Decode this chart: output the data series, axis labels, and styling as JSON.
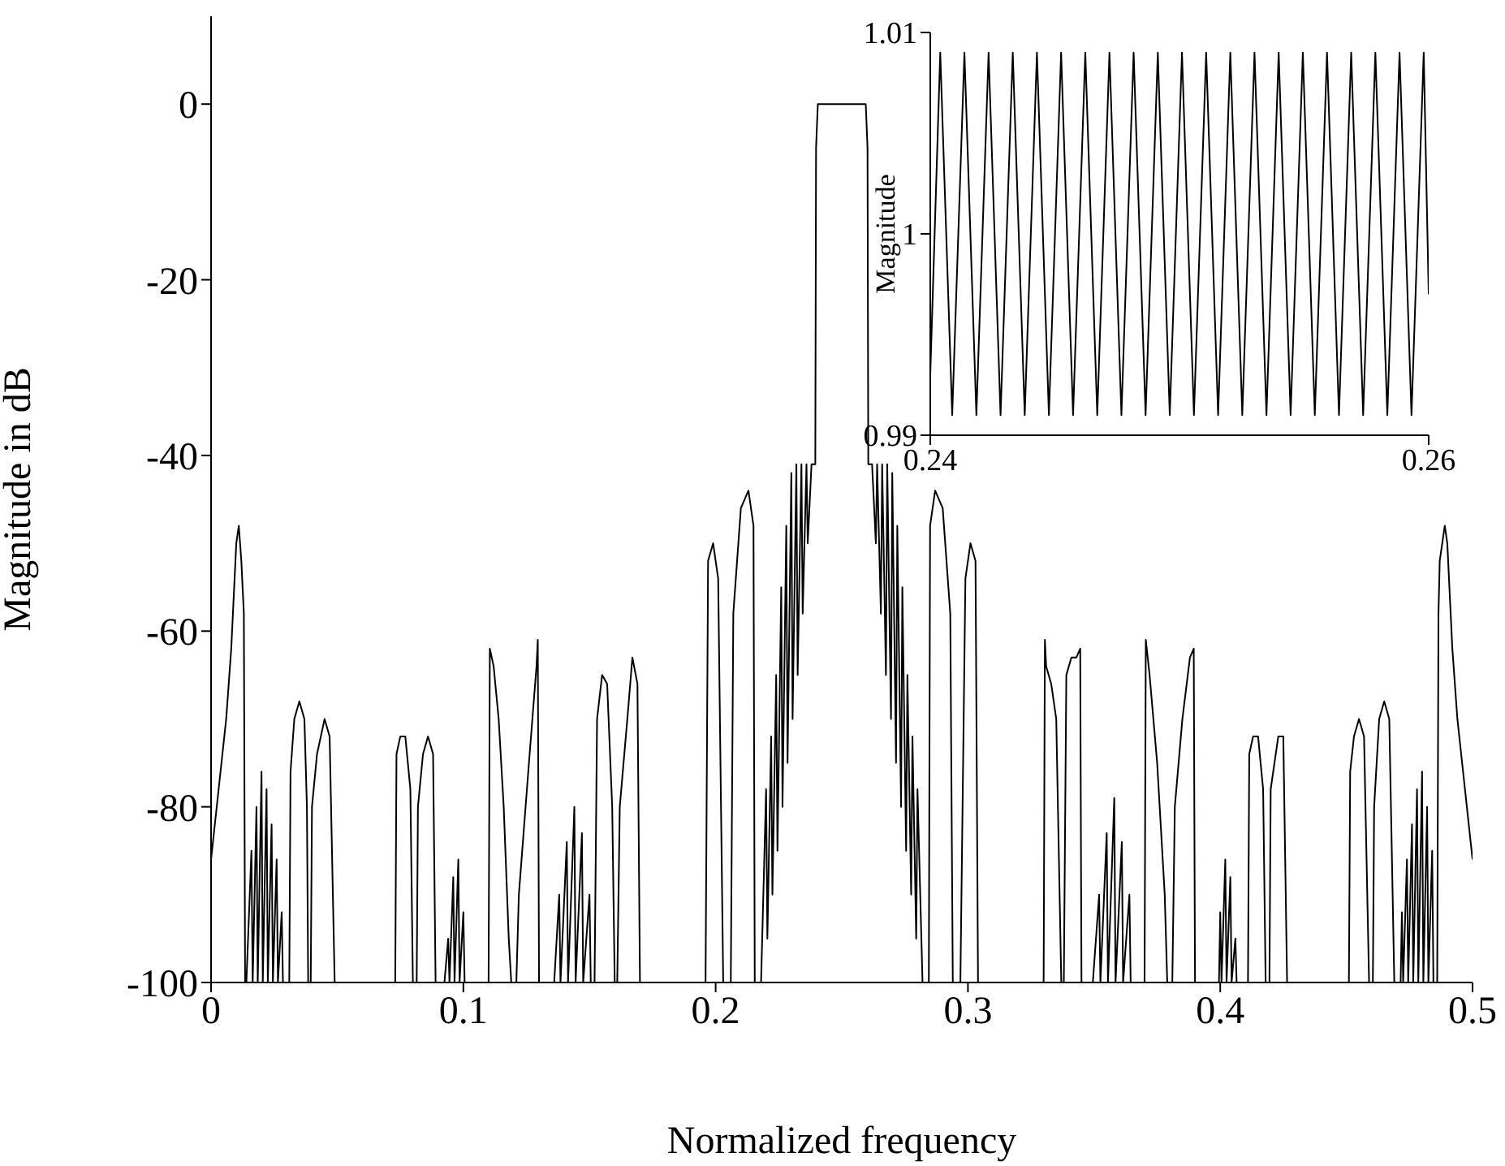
{
  "chart_data": [
    {
      "type": "line",
      "xlabel": "Normalized frequency",
      "ylabel": "Magnitude in dB",
      "xlim": [
        0,
        0.5
      ],
      "ylim": [
        -100,
        10
      ],
      "xticks": [
        0,
        0.1,
        0.2,
        0.3,
        0.4,
        0.5
      ],
      "yticks": [
        -100,
        -80,
        -60,
        -40,
        -20,
        0
      ],
      "series": [
        {
          "color": "#000000",
          "x": [
            0,
            0.003,
            0.006,
            0.008,
            0.01,
            0.011,
            0.012,
            0.013,
            0.0135,
            0.014,
            0.016,
            0.0165,
            0.018,
            0.0185,
            0.02,
            0.0205,
            0.022,
            0.0225,
            0.024,
            0.0245,
            0.026,
            0.0265,
            0.028,
            0.0285,
            0.031,
            0.0315,
            0.033,
            0.035,
            0.037,
            0.038,
            0.0385,
            0.0395,
            0.04,
            0.042,
            0.045,
            0.047,
            0.049,
            0.073,
            0.0735,
            0.075,
            0.077,
            0.079,
            0.08,
            0.0815,
            0.082,
            0.084,
            0.086,
            0.088,
            0.089,
            0.0925,
            0.094,
            0.0945,
            0.096,
            0.0965,
            0.098,
            0.0985,
            0.1,
            0.1005,
            0.11,
            0.1105,
            0.112,
            0.114,
            0.116,
            0.118,
            0.119,
            0.121,
            0.122,
            0.126,
            0.129,
            0.1295,
            0.13,
            0.136,
            0.138,
            0.1385,
            0.141,
            0.1415,
            0.144,
            0.1445,
            0.147,
            0.1475,
            0.15,
            0.1505,
            0.152,
            0.153,
            0.155,
            0.157,
            0.159,
            0.16,
            0.161,
            0.162,
            0.165,
            0.167,
            0.169,
            0.17,
            0.196,
            0.197,
            0.199,
            0.201,
            0.203,
            0.206,
            0.207,
            0.21,
            0.213,
            0.215,
            0.2155,
            0.218,
            0.22,
            0.2205,
            0.222,
            0.2225,
            0.224,
            0.2245,
            0.226,
            0.2265,
            0.228,
            0.2285,
            0.23,
            0.2305,
            0.232,
            0.2325,
            0.234,
            0.2345,
            0.236,
            0.2365,
            0.238,
            0.2395,
            0.2398,
            0.2405,
            0.245,
            0.25,
            0.255,
            0.2595,
            0.2602,
            0.2605,
            0.262,
            0.2635,
            0.264,
            0.2655,
            0.266,
            0.2675,
            0.268,
            0.2695,
            0.27,
            0.2715,
            0.272,
            0.2735,
            0.274,
            0.2755,
            0.276,
            0.2775,
            0.278,
            0.2795,
            0.28,
            0.282,
            0.2845,
            0.285,
            0.287,
            0.29,
            0.293,
            0.294,
            0.297,
            0.299,
            0.301,
            0.303,
            0.304,
            0.33,
            0.3305,
            0.331,
            0.333,
            0.335,
            0.337,
            0.338,
            0.339,
            0.341,
            0.343,
            0.3445,
            0.345,
            0.3495,
            0.352,
            0.3525,
            0.355,
            0.3555,
            0.358,
            0.3585,
            0.361,
            0.3615,
            0.364,
            0.3645,
            0.37,
            0.3705,
            0.372,
            0.375,
            0.378,
            0.379,
            0.381,
            0.382,
            0.385,
            0.388,
            0.3895,
            0.39,
            0.3995,
            0.4,
            0.4005,
            0.402,
            0.4025,
            0.404,
            0.4045,
            0.406,
            0.4065,
            0.411,
            0.4115,
            0.413,
            0.415,
            0.417,
            0.418,
            0.4195,
            0.42,
            0.423,
            0.425,
            0.4265,
            0.451,
            0.4515,
            0.453,
            0.455,
            0.457,
            0.459,
            0.4605,
            0.461,
            0.463,
            0.465,
            0.467,
            0.469,
            0.4715,
            0.472,
            0.4725,
            0.474,
            0.4745,
            0.476,
            0.4765,
            0.478,
            0.4785,
            0.48,
            0.4805,
            0.482,
            0.4825,
            0.484,
            0.4845,
            0.486,
            0.4865,
            0.487,
            0.489,
            0.49,
            0.492,
            0.494,
            0.497,
            0.5
          ],
          "values": [
            -86,
            -78,
            -70,
            -62,
            -50,
            -48,
            -52,
            -58,
            -100,
            -100,
            -85,
            -100,
            -80,
            -100,
            -76,
            -100,
            -78,
            -100,
            -82,
            -100,
            -86,
            -100,
            -92,
            -100,
            -100,
            -76,
            -70,
            -68,
            -70,
            -80,
            -100,
            -100,
            -80,
            -74,
            -70,
            -72,
            -100,
            -100,
            -74,
            -72,
            -72,
            -78,
            -100,
            -100,
            -80,
            -74,
            -72,
            -74,
            -100,
            -100,
            -95,
            -100,
            -88,
            -100,
            -86,
            -100,
            -92,
            -100,
            -100,
            -62,
            -64,
            -70,
            -80,
            -95,
            -100,
            -100,
            -90,
            -75,
            -64,
            -61,
            -100,
            -100,
            -90,
            -100,
            -84,
            -100,
            -80,
            -100,
            -83,
            -100,
            -90,
            -100,
            -100,
            -70,
            -65,
            -66,
            -80,
            -100,
            -100,
            -80,
            -70,
            -63,
            -66,
            -100,
            -100,
            -52,
            -50,
            -54,
            -100,
            -100,
            -58,
            -46,
            -44,
            -48,
            -100,
            -100,
            -78,
            -95,
            -72,
            -90,
            -65,
            -85,
            -55,
            -80,
            -48,
            -75,
            -42,
            -70,
            -41,
            -65,
            -41,
            -58,
            -41,
            -50,
            -41,
            -41,
            -5,
            0,
            0,
            0,
            0,
            0,
            -5,
            -41,
            -41,
            -50,
            -41,
            -58,
            -41,
            -65,
            -41,
            -70,
            -42,
            -75,
            -48,
            -80,
            -55,
            -85,
            -65,
            -90,
            -72,
            -95,
            -78,
            -100,
            -100,
            -48,
            -44,
            -46,
            -58,
            -100,
            -100,
            -54,
            -50,
            -52,
            -100,
            -100,
            -61,
            -64,
            -66,
            -70,
            -100,
            -100,
            -65,
            -63,
            -63,
            -62,
            -100,
            -100,
            -90,
            -100,
            -83,
            -100,
            -79,
            -100,
            -84,
            -100,
            -90,
            -100,
            -100,
            -61,
            -65,
            -75,
            -90,
            -100,
            -100,
            -80,
            -70,
            -63,
            -62,
            -100,
            -100,
            -92,
            -100,
            -86,
            -100,
            -88,
            -100,
            -95,
            -100,
            -100,
            -74,
            -72,
            -72,
            -78,
            -100,
            -100,
            -78,
            -72,
            -72,
            -100,
            -100,
            -76,
            -72,
            -70,
            -72,
            -100,
            -100,
            -80,
            -70,
            -68,
            -70,
            -100,
            -100,
            -92,
            -100,
            -86,
            -100,
            -82,
            -100,
            -78,
            -100,
            -76,
            -100,
            -80,
            -100,
            -85,
            -100,
            -100,
            -58,
            -52,
            -48,
            -50,
            -62,
            -70,
            -78,
            -86
          ]
        }
      ]
    },
    {
      "type": "line",
      "ylabel": "Magnitude",
      "xlim": [
        0.24,
        0.26
      ],
      "ylim": [
        0.99,
        1.01
      ],
      "xticks": [
        0.24,
        0.26
      ],
      "yticks": [
        0.99,
        1,
        1.01
      ],
      "series": [
        {
          "color": "#000000",
          "x": [
            0.24,
            0.2404,
            0.24088,
            0.24137,
            0.24185,
            0.24234,
            0.24282,
            0.24331,
            0.24379,
            0.24428,
            0.24476,
            0.24525,
            0.24573,
            0.24622,
            0.2467,
            0.24719,
            0.24767,
            0.24816,
            0.24864,
            0.24913,
            0.24961,
            0.2501,
            0.25058,
            0.25107,
            0.25155,
            0.25204,
            0.25252,
            0.25301,
            0.25349,
            0.25398,
            0.25446,
            0.25495,
            0.25543,
            0.25592,
            0.2564,
            0.25689,
            0.25737,
            0.25786,
            0.25834,
            0.25883,
            0.25931,
            0.2598,
            0.26
          ],
          "values": [
            0.993,
            1.009,
            0.991,
            1.009,
            0.991,
            1.009,
            0.991,
            1.009,
            0.991,
            1.009,
            0.991,
            1.009,
            0.991,
            1.009,
            0.991,
            1.009,
            0.991,
            1.009,
            0.991,
            1.009,
            0.991,
            1.009,
            0.991,
            1.009,
            0.991,
            1.009,
            0.991,
            1.009,
            0.991,
            1.009,
            0.991,
            1.009,
            0.991,
            1.009,
            0.991,
            1.009,
            0.991,
            1.009,
            0.991,
            1.009,
            0.991,
            1.009,
            0.997
          ]
        }
      ]
    }
  ]
}
